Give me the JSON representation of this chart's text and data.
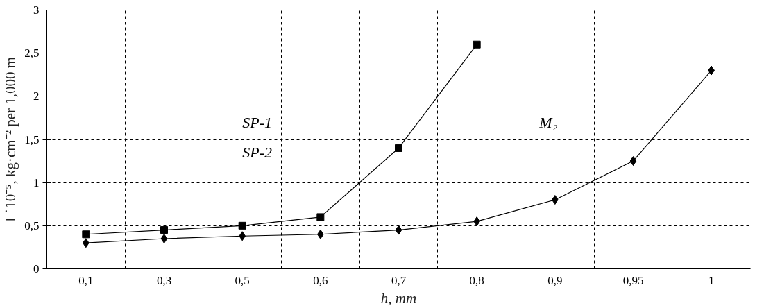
{
  "chart_data": {
    "type": "line",
    "xlabel": "h, mm",
    "ylabel": "I ˙10⁻⁵, kg·cm⁻² per 1,000 m",
    "categories": [
      "0,1",
      "0,3",
      "0,5",
      "0,6",
      "0,7",
      "0,8",
      "0,9",
      "0,95",
      "1"
    ],
    "series": [
      {
        "color": "#000000",
        "marker": "square",
        "values": [
          0.4,
          0.45,
          0.5,
          0.6,
          1.4,
          2.6,
          null,
          null,
          null
        ]
      },
      {
        "color": "#000000",
        "marker": "diamond",
        "values": [
          0.3,
          0.35,
          0.38,
          0.4,
          0.45,
          0.55,
          0.8,
          1.25,
          2.3
        ]
      }
    ],
    "annotations": [
      "SP-1",
      "SP-2",
      "M₂"
    ],
    "ylim": [
      0,
      3
    ],
    "yticks": [
      0,
      {
        "value": 0.5,
        "label": "0,5"
      },
      1,
      {
        "value": 1.5,
        "label": "1,5"
      },
      2,
      {
        "value": 2.5,
        "label": "2,5"
      },
      3
    ],
    "grid": true,
    "line_style": "solid"
  }
}
